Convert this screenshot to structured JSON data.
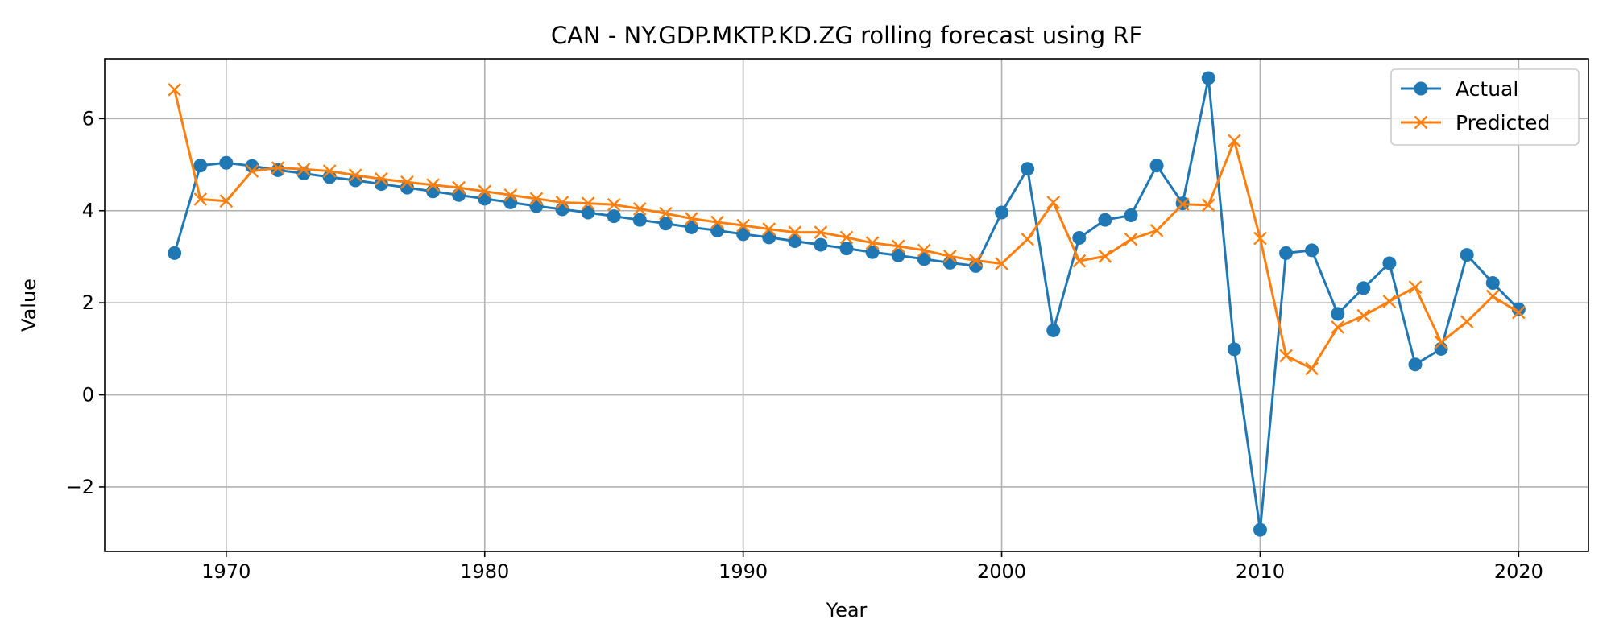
{
  "chart_data": {
    "type": "line",
    "title": "CAN - NY.GDP.MKTP.KD.ZG rolling forecast using RF",
    "xlabel": "Year",
    "ylabel": "Value",
    "xlim": [
      1965.3,
      2022.7
    ],
    "ylim": [
      -3.4,
      7.3
    ],
    "xticks": [
      1970,
      1980,
      1990,
      2000,
      2010,
      2020
    ],
    "yticks": [
      -2,
      0,
      2,
      4,
      6
    ],
    "ytick_labels": [
      "−2",
      "0",
      "2",
      "4",
      "6"
    ],
    "grid": true,
    "legend_position": "top-right",
    "x": [
      1968,
      1969,
      1970,
      1971,
      1972,
      1973,
      1974,
      1975,
      1976,
      1977,
      1978,
      1979,
      1980,
      1981,
      1982,
      1983,
      1984,
      1985,
      1986,
      1987,
      1988,
      1989,
      1990,
      1991,
      1992,
      1993,
      1994,
      1995,
      1996,
      1997,
      1998,
      1999,
      2000,
      2001,
      2002,
      2003,
      2004,
      2005,
      2006,
      2007,
      2008,
      2009,
      2010,
      2011,
      2012,
      2013,
      2014,
      2015,
      2016,
      2017,
      2018,
      2019,
      2020
    ],
    "series": [
      {
        "name": "Actual",
        "color": "#1f77b4",
        "marker": "circle",
        "values": [
          3.08,
          4.98,
          5.04,
          4.97,
          4.88,
          4.81,
          4.73,
          4.66,
          4.58,
          4.5,
          4.42,
          4.34,
          4.26,
          4.18,
          4.1,
          4.03,
          3.96,
          3.88,
          3.8,
          3.72,
          3.64,
          3.57,
          3.49,
          3.42,
          3.34,
          3.26,
          3.18,
          3.1,
          3.03,
          2.95,
          2.87,
          2.8,
          3.96,
          4.91,
          1.4,
          3.41,
          3.8,
          3.9,
          4.98,
          4.16,
          6.88,
          0.99,
          -2.93,
          3.08,
          3.14,
          1.76,
          2.32,
          2.86,
          0.66,
          1.0,
          3.04,
          2.43,
          1.86
        ]
      },
      {
        "name": "Predicted",
        "color": "#ff7f0e",
        "marker": "x",
        "values": [
          6.63,
          4.25,
          4.21,
          4.86,
          4.93,
          4.9,
          4.86,
          4.77,
          4.69,
          4.62,
          4.56,
          4.5,
          4.42,
          4.34,
          4.26,
          4.18,
          4.16,
          4.13,
          4.04,
          3.94,
          3.83,
          3.75,
          3.68,
          3.6,
          3.53,
          3.53,
          3.42,
          3.3,
          3.23,
          3.14,
          3.01,
          2.92,
          2.85,
          3.38,
          4.18,
          2.91,
          3.01,
          3.38,
          3.57,
          4.14,
          4.12,
          5.52,
          3.4,
          0.85,
          0.57,
          1.47,
          1.72,
          2.03,
          2.34,
          1.14,
          1.59,
          2.14,
          1.79
        ]
      }
    ]
  }
}
